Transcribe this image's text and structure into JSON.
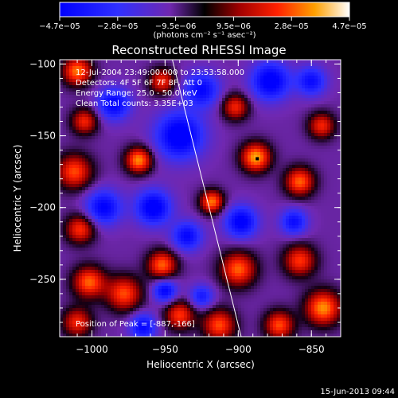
{
  "chart_data": {
    "type": "heatmap",
    "title": "Reconstructed RHESSI Image",
    "xlabel": "Heliocentric X (arcsec)",
    "ylabel": "Heliocentric Y (arcsec)",
    "xlim": [
      -1022,
      -830
    ],
    "ylim": [
      -290,
      -97
    ],
    "x_ticks": [
      -1000,
      -950,
      -900,
      -850
    ],
    "y_ticks": [
      -100,
      -150,
      -200,
      -250
    ],
    "x_tick_labels": [
      "−1000",
      "−950",
      "−900",
      "−850"
    ],
    "y_tick_labels": [
      "−100",
      "−150",
      "−200",
      "−250"
    ],
    "colorbar": {
      "tick_labels": [
        "−4.7e−05",
        "−2.8e−05",
        "−9.5e−06",
        "9.5e−06",
        "2.8e−05",
        "4.7e−05"
      ],
      "unit_label": "(photons cm⁻² s⁻¹ asec⁻²)",
      "range": [
        -4.7e-05,
        4.7e-05
      ]
    },
    "info_lines": [
      "12-Jul-2004 23:49:00.000 to 23:53:58.000",
      "Detectors: 4F 5F 6F 7F 8F, Att 0",
      "Energy Range: 25.0 - 50.0 keV",
      "Clean    Total counts: 3.35E+03"
    ],
    "peak_label": "Position of Peak = [-887,-166]",
    "peak": [
      -887,
      -166
    ],
    "limb_line": [
      [
        -945,
        -97
      ],
      [
        -898,
        -290
      ]
    ],
    "footer": "15-Jun-2013 09:44",
    "blobs": [
      {
        "x": -1010,
        "y": -105,
        "v": 0.9,
        "r": 10
      },
      {
        "x": -1005,
        "y": -140,
        "v": 0.7,
        "r": 9
      },
      {
        "x": -1012,
        "y": -175,
        "v": 0.8,
        "r": 12
      },
      {
        "x": -1008,
        "y": -215,
        "v": 0.75,
        "r": 10
      },
      {
        "x": -1002,
        "y": -252,
        "v": 0.85,
        "r": 11
      },
      {
        "x": -1010,
        "y": -280,
        "v": 0.7,
        "r": 10
      },
      {
        "x": -968,
        "y": -167,
        "v": 0.95,
        "r": 9
      },
      {
        "x": -952,
        "y": -112,
        "v": 0.7,
        "r": 9
      },
      {
        "x": -978,
        "y": -260,
        "v": 0.8,
        "r": 12
      },
      {
        "x": -952,
        "y": -240,
        "v": 0.85,
        "r": 10
      },
      {
        "x": -940,
        "y": -275,
        "v": 0.75,
        "r": 10
      },
      {
        "x": -918,
        "y": -196,
        "v": 0.9,
        "r": 8
      },
      {
        "x": -902,
        "y": -130,
        "v": 0.7,
        "r": 9
      },
      {
        "x": -888,
        "y": -165,
        "v": 1.0,
        "r": 10
      },
      {
        "x": -900,
        "y": -243,
        "v": 0.85,
        "r": 12
      },
      {
        "x": -913,
        "y": -282,
        "v": 0.8,
        "r": 11
      },
      {
        "x": -858,
        "y": -182,
        "v": 0.85,
        "r": 10
      },
      {
        "x": -843,
        "y": -143,
        "v": 0.7,
        "r": 9
      },
      {
        "x": -858,
        "y": -237,
        "v": 0.75,
        "r": 11
      },
      {
        "x": -842,
        "y": -270,
        "v": 0.95,
        "r": 12
      },
      {
        "x": -872,
        "y": -282,
        "v": 0.8,
        "r": 10
      },
      {
        "x": -940,
        "y": -150,
        "v": -0.95,
        "r": 16
      },
      {
        "x": -925,
        "y": -118,
        "v": -0.75,
        "r": 12
      },
      {
        "x": -878,
        "y": -112,
        "v": -0.9,
        "r": 13
      },
      {
        "x": -850,
        "y": -112,
        "v": -0.7,
        "r": 10
      },
      {
        "x": -985,
        "y": -128,
        "v": -0.8,
        "r": 11
      },
      {
        "x": -992,
        "y": -200,
        "v": -0.8,
        "r": 12
      },
      {
        "x": -958,
        "y": -200,
        "v": -0.9,
        "r": 12
      },
      {
        "x": -935,
        "y": -220,
        "v": -0.75,
        "r": 10
      },
      {
        "x": -898,
        "y": -210,
        "v": -0.85,
        "r": 11
      },
      {
        "x": -862,
        "y": -210,
        "v": -0.7,
        "r": 9
      },
      {
        "x": -950,
        "y": -258,
        "v": -0.8,
        "r": 8
      },
      {
        "x": -965,
        "y": -283,
        "v": -0.75,
        "r": 9
      },
      {
        "x": -925,
        "y": -262,
        "v": -0.6,
        "r": 8
      }
    ]
  }
}
